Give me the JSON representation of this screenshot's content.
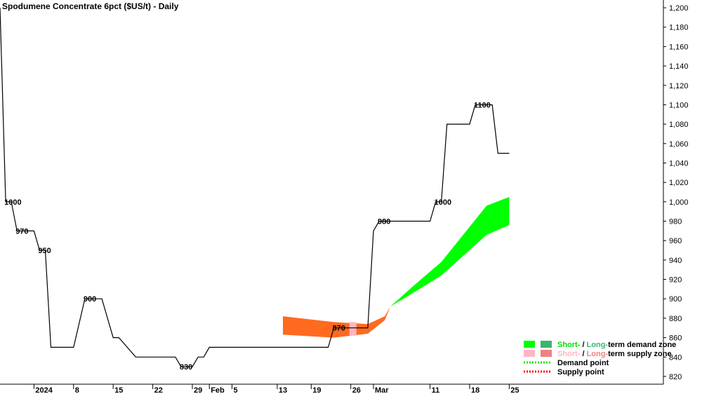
{
  "chart_data": {
    "type": "line",
    "title": "Spodumene Concentrate 6pct ($US/t) - Daily",
    "xlabel": "",
    "ylabel": "",
    "ylim": [
      812,
      1208
    ],
    "y_ticks": [
      820,
      840,
      860,
      880,
      900,
      920,
      940,
      960,
      980,
      1000,
      1020,
      1040,
      1060,
      1080,
      1100,
      1120,
      1140,
      1160,
      1180,
      1200
    ],
    "y_tick_labels": [
      "820",
      "840",
      "860",
      "880",
      "900",
      "920",
      "940",
      "960",
      "980",
      "1,000",
      "1,020",
      "1,040",
      "1,060",
      "1,080",
      "1,100",
      "1,120",
      "1,140",
      "1,160",
      "1,180",
      "1,200"
    ],
    "x_range": [
      "2023-12-26",
      "2024-03-29"
    ],
    "x_ticks": [
      {
        "date": "2024-01-01",
        "label": "2024"
      },
      {
        "date": "2024-01-08",
        "label": "8"
      },
      {
        "date": "2024-01-15",
        "label": "15"
      },
      {
        "date": "2024-01-22",
        "label": "22"
      },
      {
        "date": "2024-01-29",
        "label": "29"
      },
      {
        "date": "2024-02-01",
        "label": "Feb"
      },
      {
        "date": "2024-02-05",
        "label": "5"
      },
      {
        "date": "2024-02-13",
        "label": "13"
      },
      {
        "date": "2024-02-19",
        "label": "19"
      },
      {
        "date": "2024-02-26",
        "label": "26"
      },
      {
        "date": "2024-03-01",
        "label": "Mar"
      },
      {
        "date": "2024-03-11",
        "label": "11"
      },
      {
        "date": "2024-03-18",
        "label": "18"
      },
      {
        "date": "2024-03-25",
        "label": "25"
      }
    ],
    "series": [
      {
        "name": "",
        "type": "step-line",
        "points": [
          {
            "x": "2023-12-26",
            "y": 1200
          },
          {
            "x": "2023-12-27",
            "y": 1000
          },
          {
            "x": "2023-12-28",
            "y": 1000
          },
          {
            "x": "2023-12-29",
            "y": 970
          },
          {
            "x": "2024-01-01",
            "y": 970
          },
          {
            "x": "2024-01-02",
            "y": 950
          },
          {
            "x": "2024-01-03",
            "y": 950
          },
          {
            "x": "2024-01-04",
            "y": 850
          },
          {
            "x": "2024-01-08",
            "y": 850
          },
          {
            "x": "2024-01-10",
            "y": 900
          },
          {
            "x": "2024-01-13",
            "y": 900
          },
          {
            "x": "2024-01-15",
            "y": 860
          },
          {
            "x": "2024-01-16",
            "y": 860
          },
          {
            "x": "2024-01-19",
            "y": 840
          },
          {
            "x": "2024-01-26",
            "y": 840
          },
          {
            "x": "2024-01-27",
            "y": 830
          },
          {
            "x": "2024-01-29",
            "y": 830
          },
          {
            "x": "2024-01-30",
            "y": 840
          },
          {
            "x": "2024-01-31",
            "y": 840
          },
          {
            "x": "2024-02-01",
            "y": 850
          },
          {
            "x": "2024-02-22",
            "y": 850
          },
          {
            "x": "2024-02-23",
            "y": 870
          },
          {
            "x": "2024-02-29",
            "y": 870
          },
          {
            "x": "2024-03-01",
            "y": 970
          },
          {
            "x": "2024-03-02",
            "y": 980
          },
          {
            "x": "2024-03-11",
            "y": 980
          },
          {
            "x": "2024-03-12",
            "y": 1000
          },
          {
            "x": "2024-03-13",
            "y": 1000
          },
          {
            "x": "2024-03-14",
            "y": 1080
          },
          {
            "x": "2024-03-18",
            "y": 1080
          },
          {
            "x": "2024-03-19",
            "y": 1100
          },
          {
            "x": "2024-03-22",
            "y": 1100
          },
          {
            "x": "2024-03-23",
            "y": 1050
          },
          {
            "x": "2024-03-25",
            "y": 1050
          }
        ]
      }
    ],
    "price_labels": [
      {
        "x": "2023-12-27",
        "y": 1000,
        "text": "1000"
      },
      {
        "x": "2023-12-29",
        "y": 970,
        "text": "970"
      },
      {
        "x": "2024-01-02",
        "y": 950,
        "text": "950"
      },
      {
        "x": "2024-01-10",
        "y": 900,
        "text": "900"
      },
      {
        "x": "2024-01-27",
        "y": 830,
        "text": "830"
      },
      {
        "x": "2024-02-23",
        "y": 870,
        "text": "870"
      },
      {
        "x": "2024-03-02",
        "y": 980,
        "text": "980"
      },
      {
        "x": "2024-03-12",
        "y": 1000,
        "text": "1000"
      },
      {
        "x": "2024-03-19",
        "y": 1100,
        "text": "1100"
      }
    ],
    "supply_zone": {
      "points": [
        {
          "x": "2024-02-14",
          "lower": 863,
          "upper": 882
        },
        {
          "x": "2024-02-23",
          "lower": 860,
          "upper": 876
        },
        {
          "x": "2024-02-29",
          "lower": 864,
          "upper": 874
        },
        {
          "x": "2024-03-03",
          "lower": 878,
          "upper": 882
        },
        {
          "x": "2024-03-04",
          "lower": 892,
          "upper": 892
        }
      ]
    },
    "demand_zone": {
      "points": [
        {
          "x": "2024-03-04",
          "lower": 892,
          "upper": 892
        },
        {
          "x": "2024-03-08",
          "lower": 906,
          "upper": 913
        },
        {
          "x": "2024-03-13",
          "lower": 924,
          "upper": 938
        },
        {
          "x": "2024-03-21",
          "lower": 966,
          "upper": 996
        },
        {
          "x": "2024-03-25",
          "lower": 976,
          "upper": 1005
        }
      ]
    },
    "legend": {
      "placement": "bottom-right",
      "entries": [
        {
          "part1": "Short-",
          "part2": " / ",
          "part3": "Long-",
          "part4": "term demand zone",
          "c1": "#00ff00",
          "c2": "#3cb371",
          "text_colors": [
            "#00dd00",
            "#000000",
            "#3cb371",
            "#000000"
          ]
        },
        {
          "part1": "Short-",
          "part2": " / ",
          "part3": "Long-",
          "part4": "term supply zone",
          "c1": "#ffb6c1",
          "c2": "#f08080",
          "text_colors": [
            "#ffb6c1",
            "#000000",
            "#f08080",
            "#000000"
          ]
        },
        {
          "label": "Demand point",
          "color": "#00ee00"
        },
        {
          "label": "Supply point",
          "color": "#ff0000"
        }
      ]
    },
    "colors": {
      "price_line": "#000000",
      "supply_fill": "#ff6a1f",
      "supply_highlight": "#ffb6c1",
      "demand_fill": "#00ff00",
      "axis": "#000000"
    },
    "grid": false
  }
}
